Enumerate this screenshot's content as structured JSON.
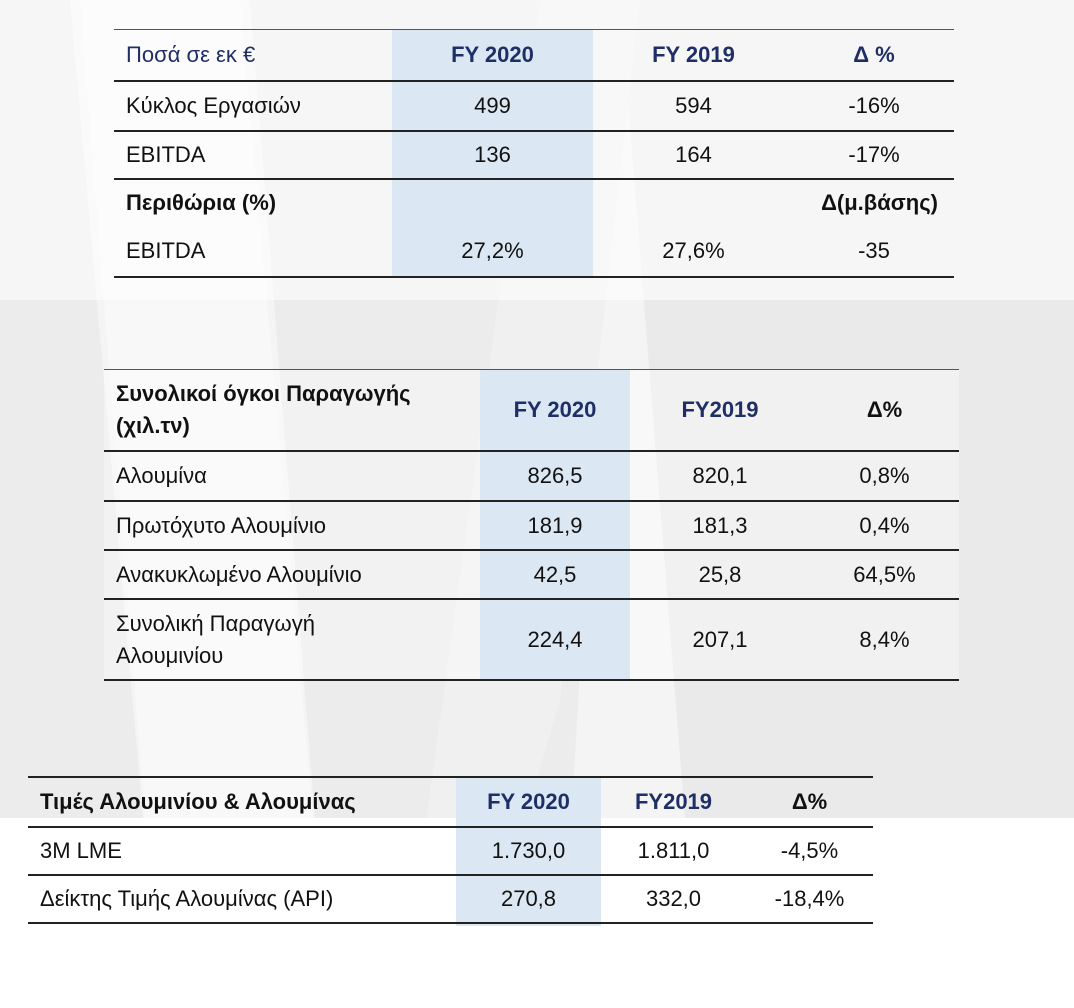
{
  "table1": {
    "headers": [
      "Ποσά σε εκ €",
      "FY 2020",
      "FY 2019",
      "Δ %"
    ],
    "rows": [
      [
        "Κύκλος Εργασιών",
        "499",
        "594",
        "-16%"
      ],
      [
        "EBITDA",
        "136",
        "164",
        "-17%"
      ]
    ],
    "section_label": "Περιθώρια (%)",
    "section_delta": "Δ(μ.βάσης)",
    "margin_row": [
      "EBITDA",
      "27,2%",
      "27,6%",
      "-35"
    ]
  },
  "table2": {
    "headers": [
      "Συνολικοί όγκοι Παραγωγής (χιλ.τν)",
      "FY 2020",
      "FY2019",
      "Δ%"
    ],
    "rows": [
      [
        "Αλουμίνα",
        "826,5",
        "820,1",
        "0,8%"
      ],
      [
        "Πρωτόχυτο Αλουμίνιο",
        "181,9",
        "181,3",
        "0,4%"
      ],
      [
        "Ανακυκλωμένο Αλουμίνιο",
        "42,5",
        "25,8",
        "64,5%"
      ],
      [
        "Συνολική Παραγωγή Αλουμινίου",
        "224,4",
        "207,1",
        "8,4%"
      ]
    ]
  },
  "table3": {
    "headers": [
      "Τιμές Αλουμινίου & Αλουμίνας",
      "FY 2020",
      "FY2019",
      "Δ%"
    ],
    "rows": [
      [
        "3M LME",
        "1.730,0",
        "1.811,0",
        "-4,5%"
      ],
      [
        "Δείκτης Τιμής Αλουμίνας (API)",
        "270,8",
        "332,0",
        "-18,4%"
      ]
    ]
  },
  "colors": {
    "header_text": "#1f2f66",
    "highlight_column": "#dbe7f3",
    "background_shape": "#ececec"
  }
}
